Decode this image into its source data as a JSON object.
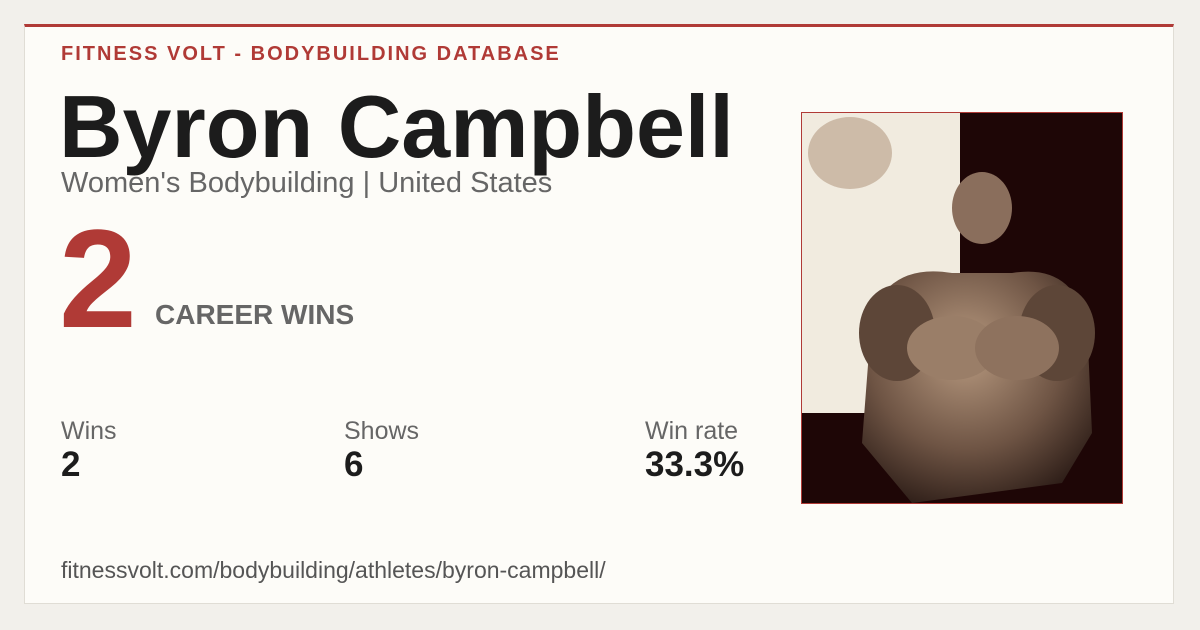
{
  "header": {
    "brand": "FITNESS VOLT - BODYBUILDING DATABASE"
  },
  "athlete": {
    "name": "Byron Campbell",
    "subtitle": "Women's Bodybuilding | United States"
  },
  "hero": {
    "value": "2",
    "label": "CAREER WINS"
  },
  "stats": [
    {
      "label": "Wins",
      "value": "2"
    },
    {
      "label": "Shows",
      "value": "6"
    },
    {
      "label": "Win rate",
      "value": "33.3%"
    }
  ],
  "footer": {
    "url": "fitnessvolt.com/bodybuilding/athletes/byron-campbell/"
  }
}
